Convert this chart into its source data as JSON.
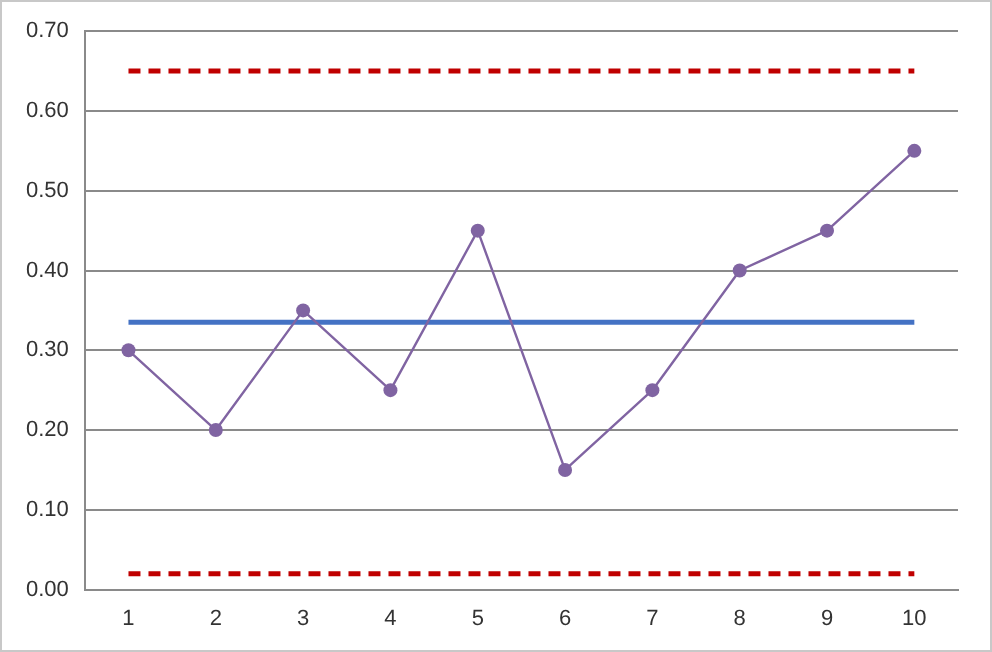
{
  "chart_data": {
    "type": "line",
    "categories": [
      "1",
      "2",
      "3",
      "4",
      "5",
      "6",
      "7",
      "8",
      "9",
      "10"
    ],
    "series": [
      {
        "color": "#8064a2",
        "marker": "circle",
        "line_style": "solid",
        "values": [
          0.3,
          0.2,
          0.35,
          0.25,
          0.45,
          0.15,
          0.25,
          0.4,
          0.45,
          0.55
        ]
      },
      {
        "color": "#4472c4",
        "marker": "none",
        "line_style": "solid",
        "values": [
          0.335,
          0.335,
          0.335,
          0.335,
          0.335,
          0.335,
          0.335,
          0.335,
          0.335,
          0.335
        ]
      },
      {
        "color": "#c00000",
        "marker": "none",
        "line_style": "dashed",
        "values": [
          0.65,
          0.65,
          0.65,
          0.65,
          0.65,
          0.65,
          0.65,
          0.65,
          0.65,
          0.65
        ]
      },
      {
        "color": "#c00000",
        "marker": "none",
        "line_style": "dashed",
        "values": [
          0.02,
          0.02,
          0.02,
          0.02,
          0.02,
          0.02,
          0.02,
          0.02,
          0.02,
          0.02
        ]
      }
    ],
    "ylim": [
      0,
      0.7
    ],
    "yticks": [
      {
        "value": 0,
        "label": "0.00"
      },
      {
        "value": 0.1,
        "label": "0.10"
      },
      {
        "value": 0.2,
        "label": "0.20"
      },
      {
        "value": 0.3,
        "label": "0.30"
      },
      {
        "value": 0.4,
        "label": "0.40"
      },
      {
        "value": 0.5,
        "label": "0.50"
      },
      {
        "value": 0.6,
        "label": "0.60"
      },
      {
        "value": 0.7,
        "label": "0.70"
      }
    ],
    "grid": "y",
    "legend": false
  }
}
